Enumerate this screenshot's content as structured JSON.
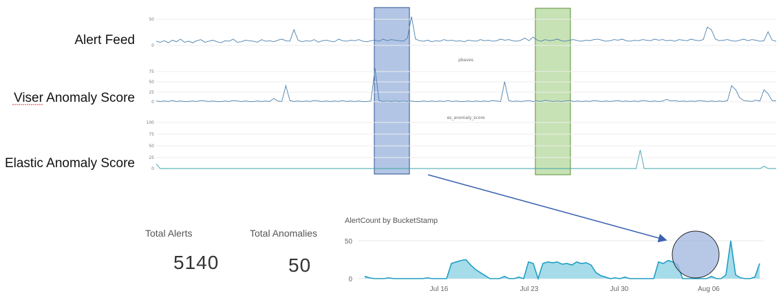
{
  "rows": {
    "alert_feed": {
      "label": "Alert Feed",
      "ticks": [
        "50",
        "0"
      ]
    },
    "viser": {
      "label": "Viser Anomaly Score",
      "title": "pbaves",
      "ticks": [
        "75",
        "50",
        "25",
        "0"
      ]
    },
    "elastic": {
      "label": "Elastic Anomaly Score",
      "title": "es_anomaly_score",
      "ticks": [
        "100",
        "75",
        "50",
        "25",
        "0"
      ]
    }
  },
  "kpis": {
    "total_alerts": {
      "label": "Total Alerts",
      "value": "5140"
    },
    "total_anomalies": {
      "label": "Total Anomalies",
      "value": "50"
    }
  },
  "colors": {
    "line": "#4a7fad",
    "teal": "#1f9ec4",
    "teal_fill": "#a6dcea",
    "blue_highlight": "#9fb6df",
    "blue_highlight_border": "#2f4f8f",
    "green_highlight": "#b9dba1",
    "green_highlight_border": "#5a8f3a",
    "arrow": "#3b63b0"
  },
  "chart_data": [
    {
      "type": "line",
      "name": "Alert Feed",
      "ylim": [
        0,
        50
      ],
      "values": [
        8,
        6,
        9,
        5,
        10,
        7,
        12,
        6,
        8,
        5,
        9,
        11,
        6,
        8,
        10,
        7,
        5,
        9,
        8,
        12,
        6,
        7,
        10,
        9,
        8,
        6,
        11,
        8,
        9,
        7,
        10,
        12,
        9,
        8,
        30,
        10,
        7,
        9,
        8,
        11,
        6,
        9,
        10,
        8,
        7,
        12,
        9,
        8,
        10,
        9,
        11,
        8,
        7,
        9,
        10,
        8,
        12,
        9,
        11,
        10,
        9,
        8,
        14,
        55,
        12,
        9,
        8,
        10,
        7,
        9,
        8,
        11,
        9,
        10,
        8,
        9,
        7,
        10,
        9,
        8,
        11,
        9,
        10,
        8,
        9,
        12,
        10,
        11,
        9,
        8,
        10,
        14,
        9,
        16,
        10,
        8,
        11,
        9,
        10,
        12,
        9,
        8,
        10,
        11,
        9,
        8,
        10,
        9,
        11,
        12,
        10,
        8,
        9,
        11,
        10,
        12,
        9,
        8,
        10,
        9,
        11,
        10,
        9,
        12,
        10,
        11,
        9,
        10,
        8,
        11,
        10,
        9,
        12,
        10,
        9,
        11,
        35,
        30,
        12,
        9,
        10,
        11,
        9,
        8,
        10,
        12,
        9,
        11,
        10,
        8,
        9,
        26,
        10,
        8
      ]
    },
    {
      "type": "line",
      "name": "Viser Anomaly Score",
      "ylim": [
        0,
        75
      ],
      "values": [
        2,
        1,
        2,
        1,
        3,
        1,
        2,
        1,
        1,
        2,
        1,
        3,
        2,
        1,
        2,
        1,
        1,
        2,
        1,
        3,
        2,
        1,
        2,
        1,
        1,
        2,
        1,
        2,
        1,
        8,
        2,
        1,
        40,
        3,
        1,
        2,
        1,
        2,
        1,
        3,
        2,
        1,
        2,
        1,
        2,
        1,
        3,
        1,
        2,
        1,
        2,
        1,
        1,
        2,
        85,
        3,
        1,
        2,
        1,
        2,
        1,
        2,
        1,
        2,
        1,
        1,
        2,
        1,
        2,
        1,
        2,
        1,
        3,
        1,
        2,
        1,
        1,
        2,
        1,
        2,
        1,
        2,
        1,
        3,
        2,
        1,
        50,
        3,
        1,
        2,
        1,
        2,
        3,
        1,
        2,
        1,
        4,
        2,
        1,
        2,
        1,
        2,
        3,
        1,
        2,
        1,
        2,
        1,
        3,
        2,
        1,
        2,
        1,
        2,
        3,
        1,
        2,
        1,
        2,
        1,
        3,
        2,
        1,
        2,
        1,
        2,
        6,
        2,
        3,
        1,
        2,
        1,
        2,
        1,
        3,
        2,
        1,
        2,
        1,
        2,
        1,
        3,
        40,
        30,
        10,
        3,
        2,
        1,
        4,
        2,
        30,
        20,
        3,
        2
      ]
    },
    {
      "type": "line",
      "name": "Elastic Anomaly Score",
      "ylim": [
        0,
        100
      ],
      "values": [
        10,
        0,
        0,
        0,
        0,
        0,
        0,
        0,
        0,
        0,
        0,
        0,
        0,
        0,
        0,
        0,
        0,
        0,
        0,
        0,
        0,
        0,
        0,
        0,
        0,
        0,
        0,
        0,
        0,
        0,
        0,
        0,
        0,
        0,
        0,
        0,
        0,
        0,
        0,
        0,
        0,
        0,
        0,
        0,
        0,
        0,
        0,
        0,
        0,
        0,
        0,
        0,
        0,
        0,
        0,
        0,
        0,
        0,
        0,
        0,
        0,
        0,
        0,
        0,
        0,
        0,
        0,
        0,
        0,
        0,
        0,
        0,
        0,
        0,
        0,
        0,
        0,
        0,
        0,
        0,
        0,
        0,
        0,
        0,
        0,
        0,
        0,
        0,
        0,
        0,
        0,
        0,
        0,
        0,
        0,
        0,
        0,
        0,
        0,
        0,
        0,
        0,
        0,
        0,
        0,
        0,
        0,
        0,
        0,
        0,
        0,
        0,
        0,
        0,
        0,
        0,
        0,
        0,
        0,
        0,
        0,
        40,
        0,
        0,
        0,
        0,
        0,
        0,
        0,
        0,
        0,
        0,
        0,
        0,
        0,
        0,
        0,
        0,
        0,
        0,
        0,
        0,
        0,
        0,
        0,
        0,
        0,
        0,
        0,
        0,
        0,
        0,
        5,
        0,
        0,
        0
      ]
    },
    {
      "type": "area",
      "title": "AlertCount by BucketStamp",
      "ylim": [
        0,
        50
      ],
      "yticks": [
        "50",
        "0"
      ],
      "xticks": [
        "Jul 16",
        "Jul 23",
        "Jul 30",
        "Aug 06"
      ],
      "x": [
        0,
        0.5,
        1,
        1.5,
        2,
        2.5,
        3,
        3.5,
        4,
        4.5,
        5,
        5.5,
        6,
        6.5,
        7,
        7.5,
        8,
        8.5,
        9,
        9.5,
        10,
        10.5,
        11,
        11.5,
        12,
        12.5,
        13,
        13.5,
        14,
        14.5,
        15,
        15.5,
        16,
        16.5,
        17,
        17.5,
        18,
        18.5,
        19,
        19.5,
        20,
        20.5,
        21,
        21.5,
        22,
        22.5,
        23,
        23.5,
        24,
        24.5,
        25,
        25.5,
        26,
        26.5,
        27,
        27.5,
        28,
        28.5,
        29,
        29.5,
        30,
        30.5,
        31,
        31.5,
        32,
        32.5,
        33,
        33.5,
        34,
        34.5,
        35,
        35.5,
        36,
        36.5,
        37,
        37.5,
        38,
        38.5,
        39,
        39.5,
        40,
        40.5,
        41
      ],
      "values": [
        3,
        1,
        0,
        0,
        0,
        1,
        0,
        0,
        0,
        0,
        0,
        0,
        0,
        1,
        0,
        0,
        0,
        0,
        20,
        22,
        24,
        25,
        18,
        12,
        8,
        4,
        0,
        0,
        0,
        3,
        0,
        0,
        2,
        0,
        22,
        20,
        0,
        20,
        22,
        21,
        22,
        19,
        20,
        18,
        22,
        20,
        21,
        18,
        8,
        4,
        2,
        0,
        1,
        0,
        2,
        0,
        0,
        0,
        0,
        0,
        0,
        22,
        20,
        24,
        22,
        18,
        0,
        0,
        0,
        0,
        0,
        0,
        3,
        0,
        0,
        5,
        50,
        5,
        1,
        0,
        0,
        2,
        20
      ]
    }
  ]
}
